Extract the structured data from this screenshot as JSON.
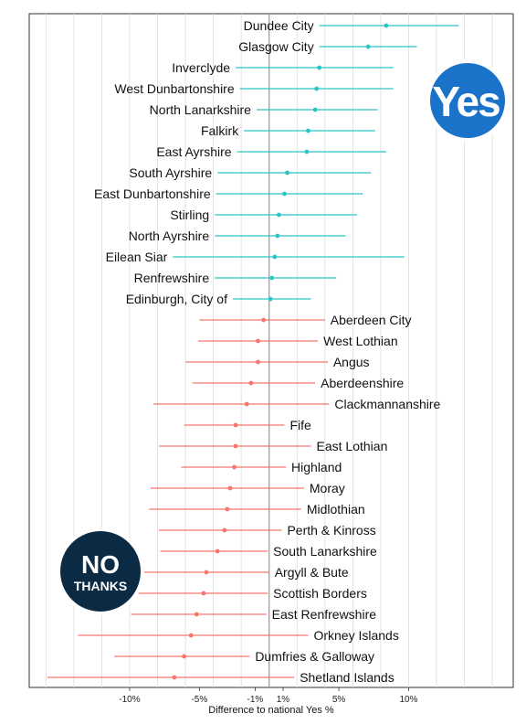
{
  "chart_data": {
    "type": "errorbar",
    "xlabel": "Difference to national Yes %",
    "xlim": [
      -17.2,
      17.5
    ],
    "xticks": [
      -10,
      -5,
      -1,
      1,
      5,
      10
    ],
    "xtick_labels": [
      "-10%",
      "-5%",
      "-1%",
      "1%",
      "5%",
      "10%"
    ],
    "colors": {
      "yes": "#2EC4C6",
      "no": "#F8766D",
      "reference": "#9a9a9a",
      "grid": "#dcdcdc"
    },
    "series": [
      {
        "name": "Yes",
        "points": [
          {
            "label": "Dundee City",
            "value": 8.4,
            "low": 3.6,
            "high": 13.6
          },
          {
            "label": "Glasgow City",
            "value": 7.1,
            "low": 3.6,
            "high": 10.6
          },
          {
            "label": "Inverclyde",
            "value": 3.6,
            "low": -2.4,
            "high": 8.9
          },
          {
            "label": "West Dunbartonshire",
            "value": 3.4,
            "low": -2.1,
            "high": 8.9
          },
          {
            "label": "North Lanarkshire",
            "value": 3.3,
            "low": -0.9,
            "high": 7.8
          },
          {
            "label": "Falkirk",
            "value": 2.8,
            "low": -1.8,
            "high": 7.6
          },
          {
            "label": "East Ayrshire",
            "value": 2.7,
            "low": -2.3,
            "high": 8.4
          },
          {
            "label": "South Ayrshire",
            "value": 1.3,
            "low": -3.7,
            "high": 7.3
          },
          {
            "label": "East Dunbartonshire",
            "value": 1.1,
            "low": -3.8,
            "high": 6.7
          },
          {
            "label": "Stirling",
            "value": 0.7,
            "low": -3.9,
            "high": 6.3
          },
          {
            "label": "North Ayrshire",
            "value": 0.6,
            "low": -3.9,
            "high": 5.5
          },
          {
            "label": "Eilean Siar",
            "value": 0.4,
            "low": -6.9,
            "high": 9.7
          },
          {
            "label": "Renfrewshire",
            "value": 0.2,
            "low": -3.9,
            "high": 4.8
          },
          {
            "label": "Edinburgh, City of",
            "value": 0.1,
            "low": -2.6,
            "high": 3.0
          }
        ]
      },
      {
        "name": "No",
        "points": [
          {
            "label": "Aberdeen City",
            "value": -0.4,
            "low": -5.0,
            "high": 4.0
          },
          {
            "label": "West Lothian",
            "value": -0.8,
            "low": -5.1,
            "high": 3.5
          },
          {
            "label": "Angus",
            "value": -0.8,
            "low": -6.0,
            "high": 4.2
          },
          {
            "label": "Aberdeenshire",
            "value": -1.3,
            "low": -5.5,
            "high": 3.3
          },
          {
            "label": "Clackmannanshire",
            "value": -1.6,
            "low": -8.3,
            "high": 4.3
          },
          {
            "label": "Fife",
            "value": -2.4,
            "low": -6.1,
            "high": 1.1
          },
          {
            "label": "East Lothian",
            "value": -2.4,
            "low": -7.9,
            "high": 3.0
          },
          {
            "label": "Highland",
            "value": -2.5,
            "low": -6.3,
            "high": 1.2
          },
          {
            "label": "Moray",
            "value": -2.8,
            "low": -8.5,
            "high": 2.5
          },
          {
            "label": "Midlothian",
            "value": -3.0,
            "low": -8.6,
            "high": 2.3
          },
          {
            "label": "Perth & Kinross",
            "value": -3.2,
            "low": -7.9,
            "high": 0.9
          },
          {
            "label": "South Lanarkshire",
            "value": -3.7,
            "low": -7.8,
            "high": -0.1
          },
          {
            "label": "Argyll & Bute",
            "value": -4.5,
            "low": -9.3,
            "high": 0.0
          },
          {
            "label": "Scottish Borders",
            "value": -4.7,
            "low": -9.4,
            "high": -0.1
          },
          {
            "label": "East Renfrewshire",
            "value": -5.2,
            "low": -9.9,
            "high": -0.2
          },
          {
            "label": "Orkney Islands",
            "value": -5.6,
            "low": -13.7,
            "high": 2.8
          },
          {
            "label": "Dumfries & Galloway",
            "value": -6.1,
            "low": -11.1,
            "high": -1.4
          },
          {
            "label": "Shetland Islands",
            "value": -6.8,
            "low": -15.9,
            "high": 1.8
          }
        ]
      }
    ]
  },
  "logos": {
    "yes": {
      "text": "Yes",
      "color": "#1a73c9"
    },
    "no": {
      "text_top": "NO",
      "text_bottom": "THANKS",
      "color": "#0b2a44"
    }
  }
}
